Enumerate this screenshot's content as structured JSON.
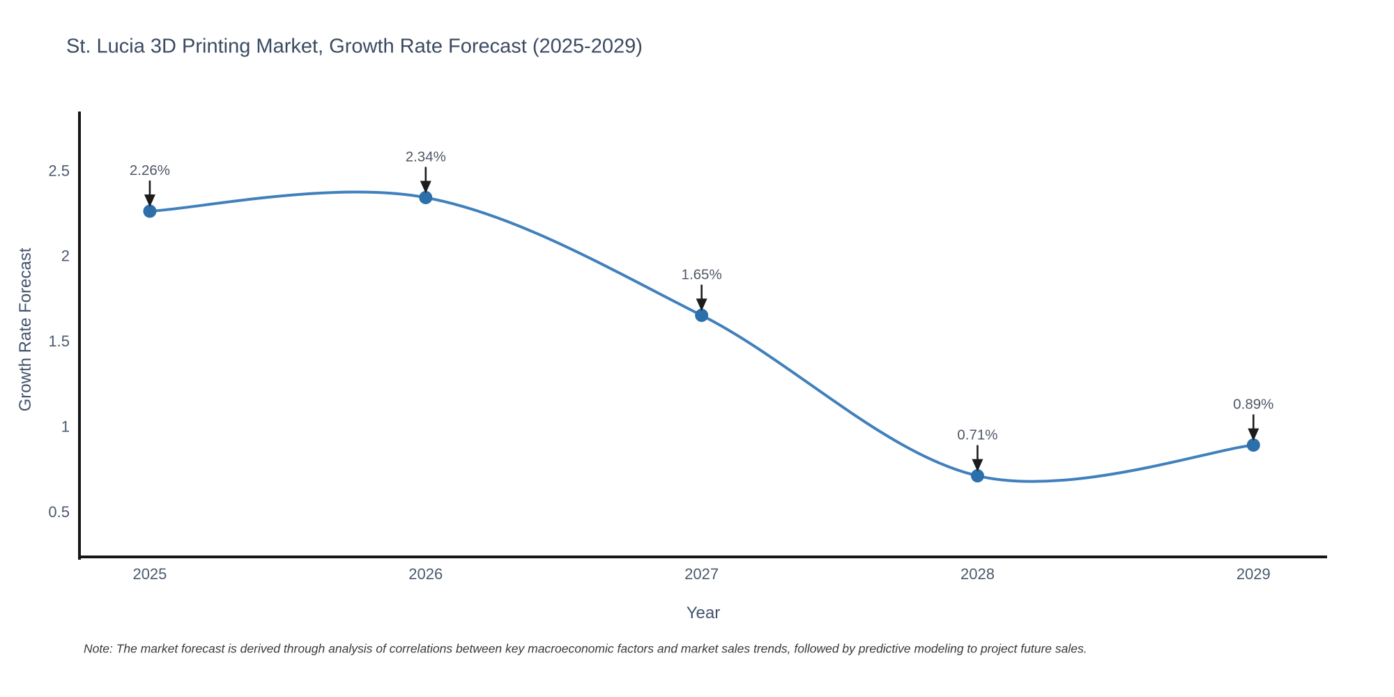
{
  "note": "Note: The market forecast is derived through analysis of correlations between key macroeconomic factors and market sales trends, followed by predictive modeling to project future sales.",
  "chart_data": {
    "type": "line",
    "title": "St. Lucia 3D Printing Market, Growth Rate Forecast (2025-2029)",
    "xlabel": "Year",
    "ylabel": "Growth Rate Forecast",
    "x": [
      2025,
      2026,
      2027,
      2028,
      2029
    ],
    "values": [
      2.26,
      2.34,
      1.65,
      0.71,
      0.89
    ],
    "point_labels": [
      "2.26%",
      "2.34%",
      "1.65%",
      "0.71%",
      "0.89%"
    ],
    "x_tick_labels": [
      "2025",
      "2026",
      "2027",
      "2028",
      "2029"
    ],
    "y_ticks": [
      0.5,
      1,
      1.5,
      2,
      2.5
    ],
    "y_tick_labels": [
      "0.5",
      "1",
      "1.5",
      "2",
      "2.5"
    ],
    "xlim": [
      2024.745,
      2029.267
    ],
    "ylim": [
      0.235,
      2.844
    ],
    "line_shape": "spline",
    "grid": false,
    "legend": false,
    "colors": {
      "line": "#4080bc",
      "marker": "#2d6fab",
      "axis": "#161616",
      "arrow": "#1c1c1c",
      "tick_label": "#4a5a6e",
      "annotation_text": "#4d5666",
      "title_text": "#3b4a61"
    }
  }
}
